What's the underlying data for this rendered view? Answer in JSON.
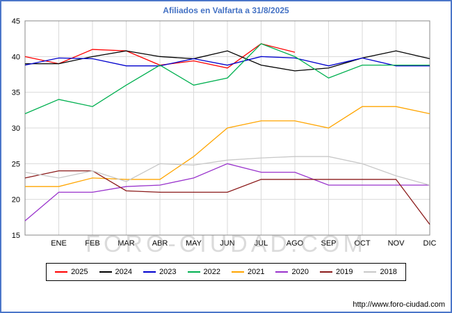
{
  "footer": {
    "url": "http://www.foro-ciudad.com"
  },
  "chart_data": {
    "type": "line",
    "title": "Afiliados en Valfarta a 31/8/2025",
    "watermark": "FORO-CIUDAD.COM",
    "x_labels": [
      "ENE",
      "FEB",
      "MAR",
      "ABR",
      "MAY",
      "JUN",
      "JUL",
      "AGO",
      "SEP",
      "OCT",
      "NOV",
      "DIC"
    ],
    "x_points_note": "13 points per full series: left-edge start value followed by the 12 month values",
    "ylim": [
      15,
      45
    ],
    "yticks": [
      15,
      20,
      25,
      30,
      35,
      40,
      45
    ],
    "grid": true,
    "legend_position": "bottom",
    "series": [
      {
        "name": "2025",
        "color": "#ff0000",
        "values": [
          40,
          39,
          41,
          40.8,
          38.8,
          39.4,
          38.4,
          41.8,
          40.6
        ]
      },
      {
        "name": "2024",
        "color": "#000000",
        "values": [
          39,
          39,
          40,
          40.8,
          40,
          39.7,
          40.8,
          38.8,
          38,
          38.4,
          39.8,
          40.8,
          39.7
        ]
      },
      {
        "name": "2023",
        "color": "#0000cd",
        "values": [
          38.8,
          39.8,
          39.7,
          38.7,
          38.7,
          39.7,
          38.8,
          40,
          39.8,
          38.7,
          39.8,
          38.7,
          38.7
        ]
      },
      {
        "name": "2022",
        "color": "#00b050",
        "values": [
          32,
          34,
          33,
          36,
          38.8,
          36,
          37,
          41.8,
          40,
          37,
          38.8,
          38.8,
          38.8
        ]
      },
      {
        "name": "2021",
        "color": "#ffa500",
        "values": [
          21.8,
          21.8,
          23,
          22.8,
          22.8,
          26,
          30,
          31,
          31,
          30,
          33,
          33,
          32
        ]
      },
      {
        "name": "2020",
        "color": "#9933cc",
        "values": [
          17,
          21,
          21,
          21.8,
          22,
          23,
          25,
          23.8,
          23.8,
          22,
          22,
          22,
          22
        ]
      },
      {
        "name": "2019",
        "color": "#8b1a1a",
        "values": [
          23,
          24,
          24,
          21.2,
          21,
          21,
          21,
          22.8,
          22.8,
          22.8,
          22.8,
          22.8,
          16.5
        ]
      },
      {
        "name": "2018",
        "color": "#c8c8c8",
        "values": [
          23.8,
          23,
          24,
          22.5,
          25,
          24.8,
          25.5,
          25.8,
          26,
          26,
          25,
          23.3,
          22
        ]
      }
    ]
  }
}
